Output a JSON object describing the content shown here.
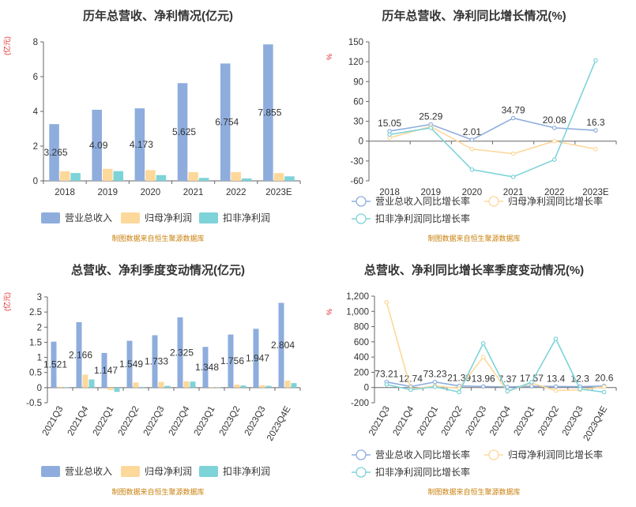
{
  "colors": {
    "revenue": "#8eaddd",
    "net_profit": "#fdd89b",
    "deducted_profit": "#7dd3d8"
  },
  "source_text": "制图数据来自恒生聚源数据库",
  "chart_data": [
    {
      "type": "bar",
      "title": "历年总营收、净利情况(亿元)",
      "ylabel": "(亿元)",
      "categories": [
        "2018",
        "2019",
        "2020",
        "2021",
        "2022",
        "2023E"
      ],
      "ylim": [
        0,
        8
      ],
      "yticks": [
        0,
        2,
        4,
        6,
        8
      ],
      "series": [
        {
          "name": "营业总收入",
          "values": [
            3.265,
            4.09,
            4.173,
            5.625,
            6.754,
            7.855
          ],
          "labels": [
            "3.265",
            "4.09",
            "4.173",
            "5.625",
            "6.754",
            "7.855"
          ]
        },
        {
          "name": "归母净利润",
          "values": [
            0.55,
            0.69,
            0.62,
            0.5,
            0.5,
            0.45
          ]
        },
        {
          "name": "扣非净利润",
          "values": [
            0.45,
            0.56,
            0.33,
            0.17,
            0.14,
            0.26
          ]
        }
      ],
      "legend": "bottom",
      "grid": false
    },
    {
      "type": "line",
      "title": "历年总营收、净利同比增长情况(%)",
      "ylabel": "%",
      "categories": [
        "2018",
        "2019",
        "2020",
        "2021",
        "2022",
        "2023E"
      ],
      "ylim": [
        -60,
        150
      ],
      "yticks": [
        -60,
        -30,
        0,
        30,
        60,
        90,
        120,
        150
      ],
      "series": [
        {
          "name": "营业总收入同比增长率",
          "values": [
            15.05,
            25.29,
            2.01,
            34.79,
            20.08,
            16.3
          ],
          "labels": [
            "15.05",
            "25.29",
            "2.01",
            "34.79",
            "20.08",
            "16.3"
          ]
        },
        {
          "name": "归母净利润同比增长率",
          "values": [
            5,
            22,
            -12,
            -19,
            0,
            -12
          ]
        },
        {
          "name": "扣非净利润同比增长率",
          "values": [
            10,
            20,
            -43,
            -54,
            -28,
            122
          ]
        }
      ],
      "legend": "bottom",
      "grid": false
    },
    {
      "type": "bar",
      "title": "总营收、净利季度变动情况(亿元)",
      "ylabel": "(亿元)",
      "categories": [
        "2021Q3",
        "2021Q4",
        "2022Q1",
        "2022Q2",
        "2022Q3",
        "2022Q4",
        "2023Q1",
        "2023Q2",
        "2023Q3",
        "2023Q4E"
      ],
      "ylim": [
        -0.5,
        3
      ],
      "yticks": [
        -0.5,
        0,
        0.5,
        1,
        1.5,
        2,
        2.5,
        3
      ],
      "series": [
        {
          "name": "营业总收入",
          "values": [
            1.521,
            2.166,
            1.147,
            1.549,
            1.733,
            2.325,
            1.348,
            1.756,
            1.947,
            2.804
          ],
          "labels": [
            "1.521",
            "2.166",
            "1.147",
            "1.549",
            "1.733",
            "2.325",
            "1.348",
            "1.756",
            "1.947",
            "2.804"
          ]
        },
        {
          "name": "归母净利润",
          "values": [
            0.03,
            0.43,
            -0.08,
            0.17,
            0.19,
            0.21,
            0.02,
            0.1,
            0.08,
            0.23
          ]
        },
        {
          "name": "扣非净利润",
          "values": [
            0.01,
            0.27,
            -0.14,
            0.02,
            0.06,
            0.2,
            0.01,
            0.07,
            0.06,
            0.15
          ]
        }
      ],
      "legend": "bottom",
      "grid": false
    },
    {
      "type": "line",
      "title": "总营收、净利同比增长率季度变动情况(%)",
      "ylabel": "%",
      "categories": [
        "2021Q3",
        "2021Q4",
        "2022Q1",
        "2022Q2",
        "2022Q3",
        "2022Q4",
        "2023Q1",
        "2023Q2",
        "2023Q3",
        "2023Q4E"
      ],
      "ylim": [
        -200,
        1200
      ],
      "yticks": [
        -200,
        0,
        200,
        400,
        600,
        800,
        1000,
        1200
      ],
      "ytick_labels": [
        "-200",
        "0",
        "200",
        "400",
        "600",
        "800",
        "1,000",
        "1,200"
      ],
      "series": [
        {
          "name": "营业总收入同比增长率",
          "values": [
            73.21,
            12.74,
            73.23,
            21.39,
            13.96,
            7.37,
            17.57,
            13.4,
            12.3,
            20.6
          ],
          "labels": [
            "73.21",
            "12.74",
            "73.23",
            "21.39",
            "13.96",
            "7.37",
            "17.57",
            "13.4",
            "12.3",
            "20.6"
          ]
        },
        {
          "name": "归母净利润同比增长率",
          "values": [
            1120,
            -20,
            20,
            -10,
            400,
            -50,
            60,
            -40,
            -30,
            10
          ]
        },
        {
          "name": "扣非净利润同比增长率",
          "values": [
            40,
            -30,
            10,
            -60,
            580,
            -50,
            70,
            640,
            -20,
            -60
          ]
        }
      ],
      "legend": "bottom",
      "grid": false
    }
  ]
}
